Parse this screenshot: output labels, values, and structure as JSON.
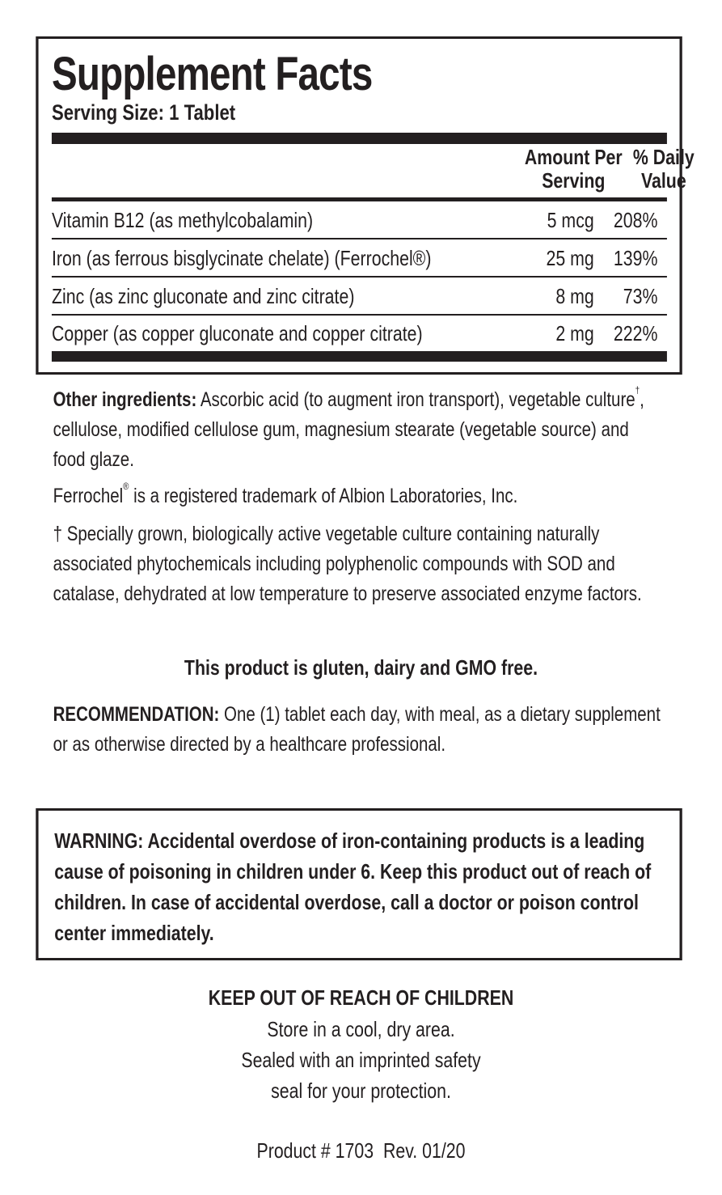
{
  "facts": {
    "title": "Supplement Facts",
    "serving_size": "Serving Size: 1 Tablet",
    "header_amount_line1": "Amount Per",
    "header_amount_line2": "Serving",
    "header_dv_line1": "% Daily",
    "header_dv_line2": "Value",
    "rows": [
      {
        "name": "Vitamin B12 (as methylcobalamin)",
        "amount": "5 mcg",
        "dv": "208%"
      },
      {
        "name": "Iron (as ferrous bisglycinate chelate) (Ferrochel®)",
        "amount": "25 mg",
        "dv": "139%"
      },
      {
        "name": "Zinc (as zinc gluconate and zinc citrate)",
        "amount": "8 mg",
        "dv": "73%"
      },
      {
        "name": "Copper (as copper gluconate and copper citrate)",
        "amount": "2 mg",
        "dv": "222%"
      }
    ]
  },
  "other_ingredients": {
    "label": "Other ingredients:",
    "text_a": " Ascorbic acid (to augment iron transport), vegetable culture",
    "dagger": "†",
    "text_b": ", cellulose, modified cellulose gum, magnesium stearate (vegetable source) and food glaze."
  },
  "trademark": {
    "a": "Ferrochel",
    "reg": "®",
    "b": " is a registered trademark of Albion Laboratories, Inc."
  },
  "culture_note": "† Specially grown, biologically active vegetable culture containing naturally associated phytochemicals including polyphenolic compounds with SOD and catalase, dehydrated at low temperature to preserve associated enzyme factors.",
  "free_statement": "This product is gluten, dairy and GMO free.",
  "recommendation": {
    "label": "RECOMMENDATION:",
    "text": " One (1) tablet each day, with meal, as a dietary supplement or as otherwise directed by a healthcare professional."
  },
  "warning": "WARNING: Accidental overdose of iron-containing products is a leading cause of poisoning in children under 6. Keep this product out of reach of children. In case of accidental overdose, call a doctor or poison control center immediately.",
  "footer": {
    "keep_out": "KEEP OUT OF REACH OF CHILDREN",
    "store": "Store in a cool, dry area.",
    "sealed_1": "Sealed with an imprinted safety",
    "sealed_2": "seal for your protection.",
    "product": "Product # 1703  Rev. 01/20"
  }
}
